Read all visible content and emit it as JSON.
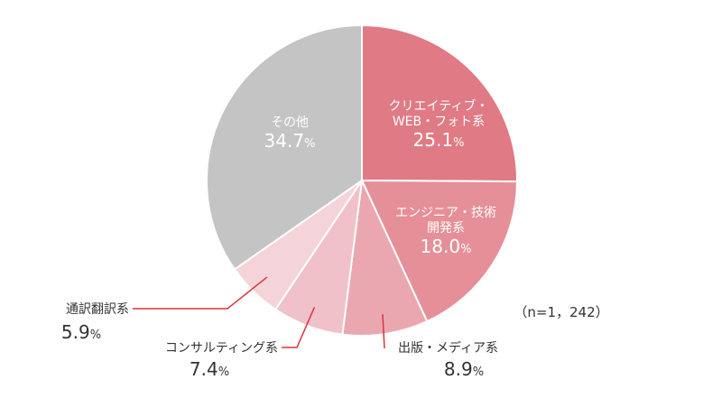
{
  "chart_data": {
    "type": "pie",
    "note": "（n=1，242）",
    "slices": [
      {
        "label_lines": [
          "クリエイティブ・",
          "WEB・フォト系"
        ],
        "value": 25.1,
        "display": "25.1",
        "unit": "%",
        "color": "#e07a85",
        "label_position": "inside"
      },
      {
        "label_lines": [
          "エンジニア・技術",
          "開発系"
        ],
        "value": 18.0,
        "display": "18.0",
        "unit": "%",
        "color": "#e58f99",
        "label_position": "inside"
      },
      {
        "label_lines": [
          "出版・メディア系"
        ],
        "value": 8.9,
        "display": "8.9",
        "unit": "%",
        "color": "#eba7b0",
        "label_position": "outside"
      },
      {
        "label_lines": [
          "コンサルティング系"
        ],
        "value": 7.4,
        "display": "7.4",
        "unit": "%",
        "color": "#f0c1c8",
        "label_position": "outside"
      },
      {
        "label_lines": [
          "通訳翻訳系"
        ],
        "value": 5.9,
        "display": "5.9",
        "unit": "%",
        "color": "#f4d4d9",
        "label_position": "outside"
      },
      {
        "label_lines": [
          "その他"
        ],
        "value": 34.7,
        "display": "34.7",
        "unit": "%",
        "color": "#c4c4c4",
        "label_position": "inside"
      }
    ],
    "leader_color": "#d9343f",
    "start": "12 o'clock, clockwise"
  }
}
